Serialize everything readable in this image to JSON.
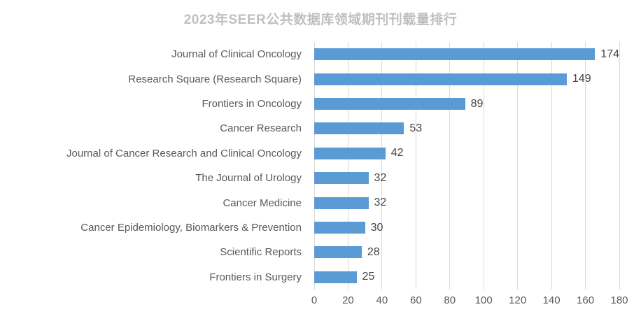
{
  "chart_data": {
    "type": "bar",
    "orientation": "horizontal",
    "title": "2023年SEER公共数据库领域期刊刊载量排行",
    "categories": [
      "Journal of Clinical Oncology",
      "Research Square (Research Square)",
      "Frontiers in Oncology",
      "Cancer Research",
      "Journal of Cancer Research and Clinical Oncology",
      "The Journal of Urology",
      "Cancer Medicine",
      "Cancer Epidemiology, Biomarkers & Prevention",
      "Scientific Reports",
      "Frontiers in Surgery"
    ],
    "values": [
      174,
      149,
      89,
      53,
      42,
      32,
      32,
      30,
      28,
      25
    ],
    "value_labels_shown": true,
    "xlabel": "",
    "ylabel": "",
    "xlim": [
      0,
      180
    ],
    "xticks": [
      0,
      20,
      40,
      60,
      80,
      100,
      120,
      140,
      160,
      180
    ],
    "grid": "vertical",
    "legend": "none",
    "colors": {
      "bar": "#5b9bd5",
      "title": "#bfbfbf",
      "category_text": "#595959",
      "value_text": "#444444",
      "axis_text": "#595959",
      "gridline": "#d9d9d9",
      "background": "#ffffff"
    }
  }
}
